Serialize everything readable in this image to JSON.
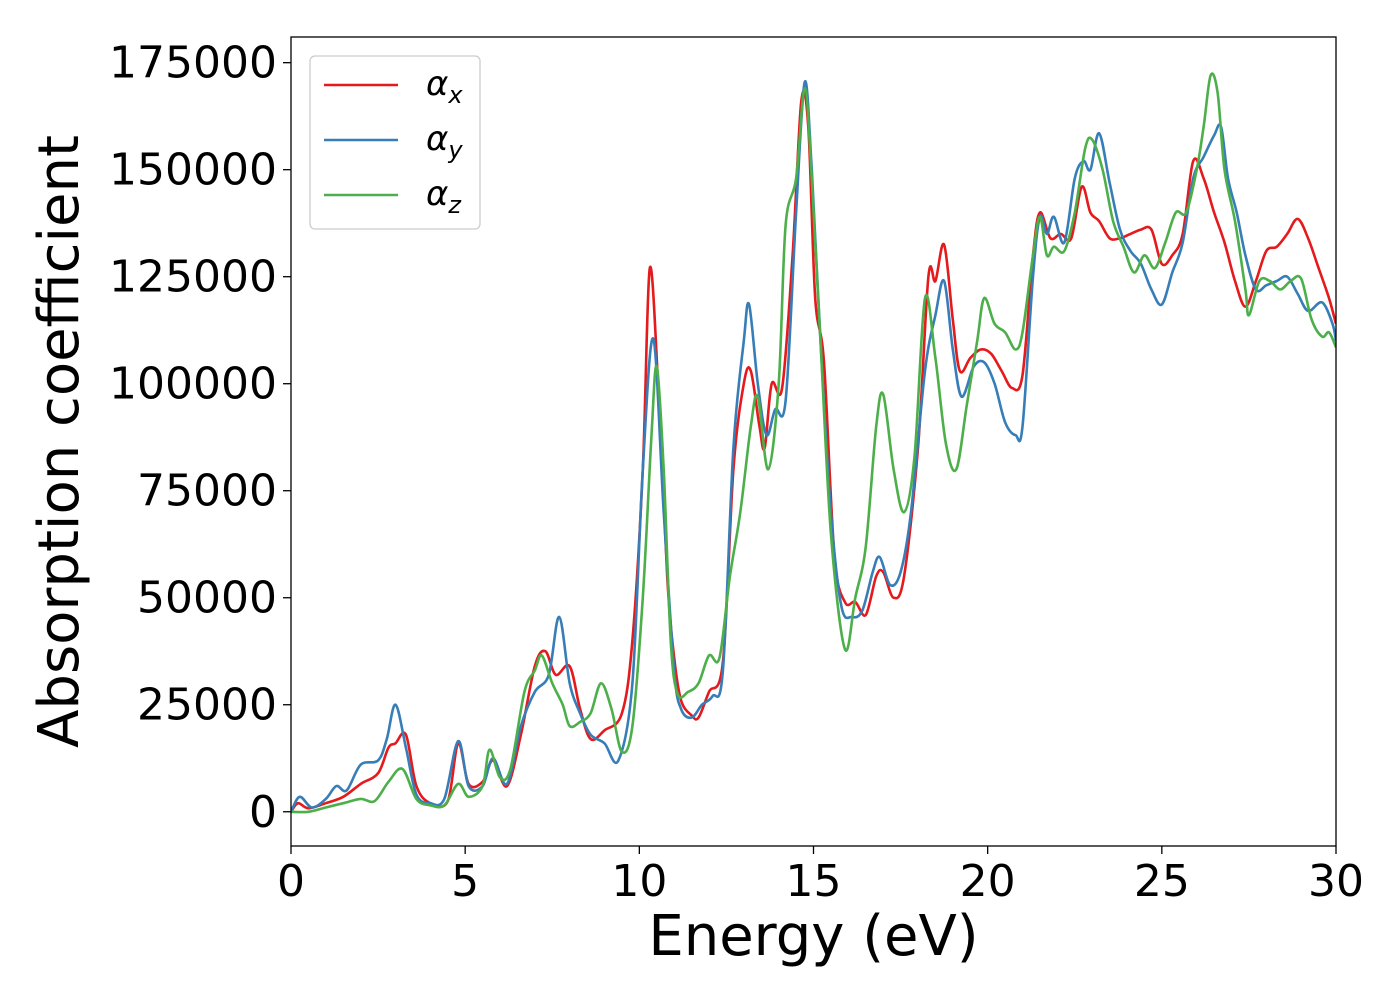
{
  "chart_data": {
    "type": "line",
    "xlabel": "Energy (eV)",
    "ylabel": "Absorption coefficient",
    "xlim": [
      0,
      30
    ],
    "ylim": [
      -8000,
      181000
    ],
    "x_ticks": [
      0,
      5,
      10,
      15,
      20,
      25,
      30
    ],
    "x_tick_labels": [
      "0",
      "5",
      "10",
      "15",
      "20",
      "25",
      "30"
    ],
    "y_ticks": [
      0,
      25000,
      50000,
      75000,
      100000,
      125000,
      150000,
      175000
    ],
    "y_tick_labels": [
      "0",
      "25000",
      "50000",
      "75000",
      "100000",
      "125000",
      "150000",
      "175000"
    ],
    "grid": false,
    "legend_position": "top-left",
    "series": [
      {
        "name": "αx",
        "legend_main": "α",
        "legend_sub": "x",
        "color": "#e41a1c",
        "points": [
          [
            0,
            0
          ],
          [
            0.2,
            2000
          ],
          [
            0.5,
            800
          ],
          [
            1,
            2000
          ],
          [
            1.5,
            3500
          ],
          [
            2,
            6500
          ],
          [
            2.5,
            9000
          ],
          [
            2.8,
            15000
          ],
          [
            3.0,
            16000
          ],
          [
            3.3,
            18000
          ],
          [
            3.6,
            6000
          ],
          [
            4,
            2000
          ],
          [
            4.5,
            2500
          ],
          [
            4.8,
            16000
          ],
          [
            5.1,
            6500
          ],
          [
            5.5,
            7000
          ],
          [
            5.8,
            12000
          ],
          [
            6.2,
            6000
          ],
          [
            6.6,
            18000
          ],
          [
            7.0,
            34000
          ],
          [
            7.3,
            37500
          ],
          [
            7.6,
            32000
          ],
          [
            8.0,
            34000
          ],
          [
            8.3,
            24000
          ],
          [
            8.6,
            17000
          ],
          [
            9.0,
            19000
          ],
          [
            9.5,
            23000
          ],
          [
            9.8,
            40000
          ],
          [
            10.1,
            80000
          ],
          [
            10.3,
            127000
          ],
          [
            10.55,
            98000
          ],
          [
            10.8,
            55000
          ],
          [
            11.0,
            36000
          ],
          [
            11.2,
            26000
          ],
          [
            11.5,
            22500
          ],
          [
            11.7,
            22000
          ],
          [
            12.0,
            28000
          ],
          [
            12.4,
            35000
          ],
          [
            12.7,
            80000
          ],
          [
            13.0,
            100000
          ],
          [
            13.2,
            103000
          ],
          [
            13.45,
            90000
          ],
          [
            13.6,
            85000
          ],
          [
            13.8,
            100000
          ],
          [
            14.1,
            99000
          ],
          [
            14.4,
            130000
          ],
          [
            14.65,
            166000
          ],
          [
            14.85,
            160000
          ],
          [
            15.05,
            120000
          ],
          [
            15.3,
            105000
          ],
          [
            15.6,
            60000
          ],
          [
            15.9,
            49000
          ],
          [
            16.2,
            49000
          ],
          [
            16.5,
            46000
          ],
          [
            16.8,
            55000
          ],
          [
            17.0,
            56000
          ],
          [
            17.3,
            50000
          ],
          [
            17.6,
            55000
          ],
          [
            18.0,
            85000
          ],
          [
            18.3,
            125000
          ],
          [
            18.5,
            124000
          ],
          [
            18.75,
            132500
          ],
          [
            19.0,
            115000
          ],
          [
            19.2,
            103000
          ],
          [
            19.5,
            106000
          ],
          [
            19.8,
            108000
          ],
          [
            20.1,
            107000
          ],
          [
            20.4,
            103000
          ],
          [
            20.7,
            99000
          ],
          [
            21.0,
            102000
          ],
          [
            21.3,
            130000
          ],
          [
            21.5,
            140000
          ],
          [
            21.8,
            134000
          ],
          [
            22.1,
            135000
          ],
          [
            22.4,
            134000
          ],
          [
            22.7,
            146000
          ],
          [
            22.95,
            140000
          ],
          [
            23.2,
            138000
          ],
          [
            23.5,
            134000
          ],
          [
            23.8,
            134000
          ],
          [
            24.1,
            135000
          ],
          [
            24.4,
            136000
          ],
          [
            24.7,
            136000
          ],
          [
            25.0,
            128000
          ],
          [
            25.3,
            130000
          ],
          [
            25.6,
            135000
          ],
          [
            25.9,
            152000
          ],
          [
            26.2,
            148000
          ],
          [
            26.5,
            140000
          ],
          [
            26.8,
            133000
          ],
          [
            27.1,
            124000
          ],
          [
            27.4,
            118000
          ],
          [
            27.7,
            124000
          ],
          [
            28.0,
            131000
          ],
          [
            28.3,
            132000
          ],
          [
            28.6,
            135000
          ],
          [
            28.9,
            138500
          ],
          [
            29.2,
            134000
          ],
          [
            29.5,
            127000
          ],
          [
            29.8,
            120000
          ],
          [
            30,
            114000
          ]
        ]
      },
      {
        "name": "αy",
        "legend_main": "α",
        "legend_sub": "y",
        "color": "#377eb8",
        "points": [
          [
            0,
            0
          ],
          [
            0.25,
            3500
          ],
          [
            0.6,
            1000
          ],
          [
            1.0,
            3000
          ],
          [
            1.3,
            6000
          ],
          [
            1.6,
            5000
          ],
          [
            2.0,
            11000
          ],
          [
            2.5,
            12000
          ],
          [
            2.75,
            17000
          ],
          [
            3.0,
            25000
          ],
          [
            3.3,
            15000
          ],
          [
            3.6,
            4000
          ],
          [
            4.0,
            2000
          ],
          [
            4.4,
            3000
          ],
          [
            4.8,
            16500
          ],
          [
            5.1,
            6000
          ],
          [
            5.5,
            6000
          ],
          [
            5.8,
            12500
          ],
          [
            6.2,
            6500
          ],
          [
            6.6,
            20000
          ],
          [
            7.0,
            28000
          ],
          [
            7.4,
            32000
          ],
          [
            7.7,
            45500
          ],
          [
            8.0,
            30000
          ],
          [
            8.3,
            23000
          ],
          [
            8.6,
            18000
          ],
          [
            9.0,
            16000
          ],
          [
            9.4,
            12000
          ],
          [
            9.8,
            30000
          ],
          [
            10.1,
            80000
          ],
          [
            10.4,
            110500
          ],
          [
            10.7,
            70000
          ],
          [
            11.0,
            33000
          ],
          [
            11.2,
            24000
          ],
          [
            11.5,
            22000
          ],
          [
            11.8,
            25000
          ],
          [
            12.1,
            27000
          ],
          [
            12.4,
            33000
          ],
          [
            12.7,
            85000
          ],
          [
            13.0,
            110000
          ],
          [
            13.15,
            118500
          ],
          [
            13.4,
            100000
          ],
          [
            13.65,
            88000
          ],
          [
            13.9,
            94000
          ],
          [
            14.2,
            96000
          ],
          [
            14.5,
            140000
          ],
          [
            14.75,
            170500
          ],
          [
            14.95,
            150000
          ],
          [
            15.2,
            110000
          ],
          [
            15.5,
            70000
          ],
          [
            15.8,
            48000
          ],
          [
            16.1,
            45500
          ],
          [
            16.4,
            47000
          ],
          [
            16.7,
            56000
          ],
          [
            16.9,
            59500
          ],
          [
            17.2,
            53000
          ],
          [
            17.5,
            56000
          ],
          [
            17.8,
            70000
          ],
          [
            18.2,
            103000
          ],
          [
            18.5,
            116000
          ],
          [
            18.75,
            124000
          ],
          [
            19.0,
            108000
          ],
          [
            19.25,
            97000
          ],
          [
            19.6,
            104000
          ],
          [
            19.9,
            105000
          ],
          [
            20.2,
            100000
          ],
          [
            20.5,
            91000
          ],
          [
            20.8,
            88000
          ],
          [
            21.0,
            90000
          ],
          [
            21.3,
            125000
          ],
          [
            21.5,
            139000
          ],
          [
            21.7,
            135000
          ],
          [
            21.9,
            139000
          ],
          [
            22.2,
            133000
          ],
          [
            22.5,
            148000
          ],
          [
            22.75,
            152000
          ],
          [
            22.95,
            150000
          ],
          [
            23.2,
            158500
          ],
          [
            23.5,
            147000
          ],
          [
            23.8,
            136000
          ],
          [
            24.1,
            131000
          ],
          [
            24.4,
            128000
          ],
          [
            24.7,
            122000
          ],
          [
            25.0,
            118500
          ],
          [
            25.3,
            126000
          ],
          [
            25.6,
            133000
          ],
          [
            25.9,
            148000
          ],
          [
            26.2,
            153000
          ],
          [
            26.5,
            158000
          ],
          [
            26.7,
            160000
          ],
          [
            26.9,
            148000
          ],
          [
            27.15,
            140000
          ],
          [
            27.4,
            130000
          ],
          [
            27.7,
            122000
          ],
          [
            28.0,
            123000
          ],
          [
            28.3,
            124000
          ],
          [
            28.6,
            125000
          ],
          [
            28.9,
            121000
          ],
          [
            29.2,
            117000
          ],
          [
            29.6,
            119000
          ],
          [
            29.9,
            114000
          ],
          [
            30,
            110000
          ]
        ]
      },
      {
        "name": "αz",
        "legend_main": "α",
        "legend_sub": "z",
        "color": "#4daf4a",
        "points": [
          [
            0,
            0
          ],
          [
            0.5,
            0
          ],
          [
            1.0,
            1000
          ],
          [
            1.5,
            2000
          ],
          [
            2.0,
            3000
          ],
          [
            2.4,
            2500
          ],
          [
            2.8,
            7000
          ],
          [
            3.2,
            10000
          ],
          [
            3.6,
            3000
          ],
          [
            4.0,
            1500
          ],
          [
            4.4,
            1500
          ],
          [
            4.8,
            6500
          ],
          [
            5.1,
            3500
          ],
          [
            5.5,
            6000
          ],
          [
            5.7,
            14500
          ],
          [
            6.0,
            8000
          ],
          [
            6.3,
            10000
          ],
          [
            6.7,
            28000
          ],
          [
            7.0,
            33000
          ],
          [
            7.2,
            36500
          ],
          [
            7.5,
            30000
          ],
          [
            7.8,
            25000
          ],
          [
            8.0,
            20000
          ],
          [
            8.3,
            21000
          ],
          [
            8.6,
            23000
          ],
          [
            8.9,
            30000
          ],
          [
            9.2,
            24000
          ],
          [
            9.5,
            14000
          ],
          [
            9.8,
            20000
          ],
          [
            10.1,
            50000
          ],
          [
            10.35,
            88000
          ],
          [
            10.5,
            104000
          ],
          [
            10.7,
            80000
          ],
          [
            10.9,
            40000
          ],
          [
            11.1,
            27500
          ],
          [
            11.4,
            28000
          ],
          [
            11.7,
            30000
          ],
          [
            12.0,
            36500
          ],
          [
            12.3,
            36000
          ],
          [
            12.6,
            55000
          ],
          [
            12.9,
            70000
          ],
          [
            13.2,
            90000
          ],
          [
            13.4,
            97000
          ],
          [
            13.7,
            80000
          ],
          [
            14.0,
            100000
          ],
          [
            14.2,
            137000
          ],
          [
            14.5,
            148000
          ],
          [
            14.75,
            169000
          ],
          [
            14.95,
            148000
          ],
          [
            15.2,
            110000
          ],
          [
            15.5,
            65000
          ],
          [
            15.9,
            38000
          ],
          [
            16.2,
            50000
          ],
          [
            16.5,
            62000
          ],
          [
            16.8,
            90000
          ],
          [
            17.0,
            97500
          ],
          [
            17.3,
            80000
          ],
          [
            17.6,
            70000
          ],
          [
            17.9,
            83000
          ],
          [
            18.2,
            120000
          ],
          [
            18.5,
            106000
          ],
          [
            18.8,
            86000
          ],
          [
            19.1,
            80000
          ],
          [
            19.4,
            95000
          ],
          [
            19.7,
            110000
          ],
          [
            19.9,
            120000
          ],
          [
            20.2,
            114000
          ],
          [
            20.5,
            112000
          ],
          [
            20.8,
            108000
          ],
          [
            21.0,
            112000
          ],
          [
            21.3,
            130000
          ],
          [
            21.5,
            139000
          ],
          [
            21.7,
            130000
          ],
          [
            21.9,
            132000
          ],
          [
            22.2,
            131000
          ],
          [
            22.5,
            140000
          ],
          [
            22.8,
            155000
          ],
          [
            23.0,
            157000
          ],
          [
            23.3,
            150000
          ],
          [
            23.6,
            138000
          ],
          [
            23.9,
            132000
          ],
          [
            24.2,
            126000
          ],
          [
            24.5,
            130000
          ],
          [
            24.8,
            127000
          ],
          [
            25.1,
            133000
          ],
          [
            25.4,
            140000
          ],
          [
            25.7,
            140000
          ],
          [
            26.0,
            150000
          ],
          [
            26.2,
            160000
          ],
          [
            26.4,
            172000
          ],
          [
            26.6,
            168000
          ],
          [
            26.8,
            150000
          ],
          [
            27.1,
            138000
          ],
          [
            27.4,
            122000
          ],
          [
            27.5,
            116000
          ],
          [
            27.8,
            124000
          ],
          [
            28.1,
            124000
          ],
          [
            28.4,
            122000
          ],
          [
            28.7,
            124000
          ],
          [
            29.0,
            124500
          ],
          [
            29.3,
            115000
          ],
          [
            29.6,
            111000
          ],
          [
            29.8,
            112000
          ],
          [
            30,
            108500
          ]
        ]
      }
    ]
  }
}
